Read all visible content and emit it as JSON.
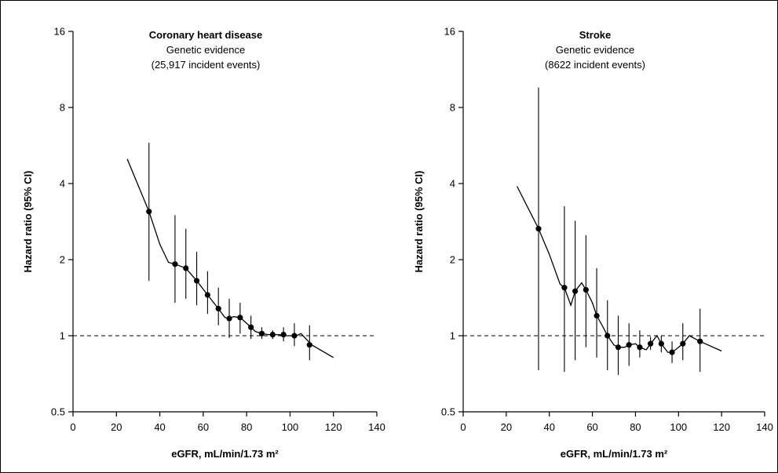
{
  "chart_data": [
    {
      "type": "line",
      "title": "Coronary heart disease",
      "subtitle": "Genetic evidence",
      "subtitle2": "(25,917 incident events)",
      "xlabel": "eGFR, mL/min/1.73 m²",
      "ylabel": "Hazard ratio (95% CI)",
      "xlim": [
        0,
        140
      ],
      "ylim": [
        0.5,
        16
      ],
      "yscale": "log",
      "x_ticks": [
        "0",
        "20",
        "40",
        "60",
        "80",
        "100",
        "120",
        "140"
      ],
      "y_ticks": [
        "0.5",
        "1",
        "2",
        "4",
        "8",
        "16"
      ],
      "reference_line": 1,
      "curve": {
        "x": [
          25,
          35,
          40,
          44,
          47,
          52,
          57,
          62,
          67,
          70,
          72,
          74,
          77,
          80,
          82,
          84,
          87,
          90,
          92,
          95,
          98,
          103,
          105,
          110,
          120
        ],
        "y": [
          5.0,
          3.1,
          2.3,
          1.95,
          1.92,
          1.85,
          1.65,
          1.45,
          1.28,
          1.18,
          1.17,
          1.19,
          1.18,
          1.12,
          1.08,
          1.04,
          1.02,
          1.01,
          1.01,
          1.01,
          1.0,
          1.0,
          1.02,
          0.92,
          0.82
        ]
      },
      "points": [
        {
          "x": 35,
          "y": 3.1,
          "lo": 1.65,
          "hi": 5.8
        },
        {
          "x": 47,
          "y": 1.92,
          "lo": 1.35,
          "hi": 3.0
        },
        {
          "x": 52,
          "y": 1.85,
          "lo": 1.4,
          "hi": 2.65
        },
        {
          "x": 57,
          "y": 1.65,
          "lo": 1.32,
          "hi": 2.15
        },
        {
          "x": 62,
          "y": 1.45,
          "lo": 1.22,
          "hi": 1.8
        },
        {
          "x": 67,
          "y": 1.28,
          "lo": 1.1,
          "hi": 1.55
        },
        {
          "x": 72,
          "y": 1.17,
          "lo": 0.98,
          "hi": 1.4
        },
        {
          "x": 77,
          "y": 1.18,
          "lo": 1.02,
          "hi": 1.35
        },
        {
          "x": 82,
          "y": 1.08,
          "lo": 0.97,
          "hi": 1.2
        },
        {
          "x": 87,
          "y": 1.02,
          "lo": 0.97,
          "hi": 1.08
        },
        {
          "x": 92,
          "y": 1.01,
          "lo": 0.97,
          "hi": 1.05
        },
        {
          "x": 97,
          "y": 1.01,
          "lo": 0.95,
          "hi": 1.08
        },
        {
          "x": 102,
          "y": 1.0,
          "lo": 0.91,
          "hi": 1.12
        },
        {
          "x": 109,
          "y": 0.92,
          "lo": 0.8,
          "hi": 1.1
        }
      ]
    },
    {
      "type": "line",
      "title": "Stroke",
      "subtitle": "Genetic evidence",
      "subtitle2": "(8622 incident events)",
      "xlabel": "eGFR, mL/min/1.73 m²",
      "ylabel": "Hazard ratio (95% CI)",
      "xlim": [
        0,
        140
      ],
      "ylim": [
        0.5,
        16
      ],
      "yscale": "log",
      "x_ticks": [
        "0",
        "20",
        "40",
        "60",
        "80",
        "100",
        "120",
        "140"
      ],
      "y_ticks": [
        "0.5",
        "1",
        "2",
        "4",
        "8",
        "16"
      ],
      "reference_line": 1,
      "curve": {
        "x": [
          25,
          35,
          40,
          45,
          47,
          50,
          52,
          55,
          57,
          60,
          62,
          65,
          67,
          70,
          72,
          75,
          77,
          80,
          82,
          85,
          87,
          90,
          92,
          95,
          97,
          100,
          102,
          105,
          110,
          120
        ],
        "y": [
          3.9,
          2.65,
          2.1,
          1.6,
          1.55,
          1.32,
          1.5,
          1.62,
          1.52,
          1.35,
          1.2,
          1.08,
          1.0,
          0.92,
          0.9,
          0.9,
          0.92,
          0.93,
          0.9,
          0.88,
          0.93,
          1.0,
          0.93,
          0.86,
          0.86,
          0.9,
          0.93,
          1.0,
          0.95,
          0.87
        ]
      },
      "points": [
        {
          "x": 35,
          "y": 2.65,
          "lo": 0.73,
          "hi": 9.6
        },
        {
          "x": 47,
          "y": 1.55,
          "lo": 0.72,
          "hi": 3.25
        },
        {
          "x": 52,
          "y": 1.5,
          "lo": 0.8,
          "hi": 2.85
        },
        {
          "x": 57,
          "y": 1.52,
          "lo": 0.9,
          "hi": 2.5
        },
        {
          "x": 62,
          "y": 1.2,
          "lo": 0.82,
          "hi": 1.85
        },
        {
          "x": 67,
          "y": 1.0,
          "lo": 0.73,
          "hi": 1.38
        },
        {
          "x": 72,
          "y": 0.9,
          "lo": 0.7,
          "hi": 1.2
        },
        {
          "x": 77,
          "y": 0.92,
          "lo": 0.76,
          "hi": 1.12
        },
        {
          "x": 82,
          "y": 0.9,
          "lo": 0.82,
          "hi": 1.05
        },
        {
          "x": 87,
          "y": 0.93,
          "lo": 0.88,
          "hi": 0.99
        },
        {
          "x": 92,
          "y": 0.93,
          "lo": 0.86,
          "hi": 1.0
        },
        {
          "x": 97,
          "y": 0.86,
          "lo": 0.78,
          "hi": 0.95
        },
        {
          "x": 102,
          "y": 0.93,
          "lo": 0.8,
          "hi": 1.12
        },
        {
          "x": 110,
          "y": 0.95,
          "lo": 0.72,
          "hi": 1.28
        }
      ]
    }
  ]
}
